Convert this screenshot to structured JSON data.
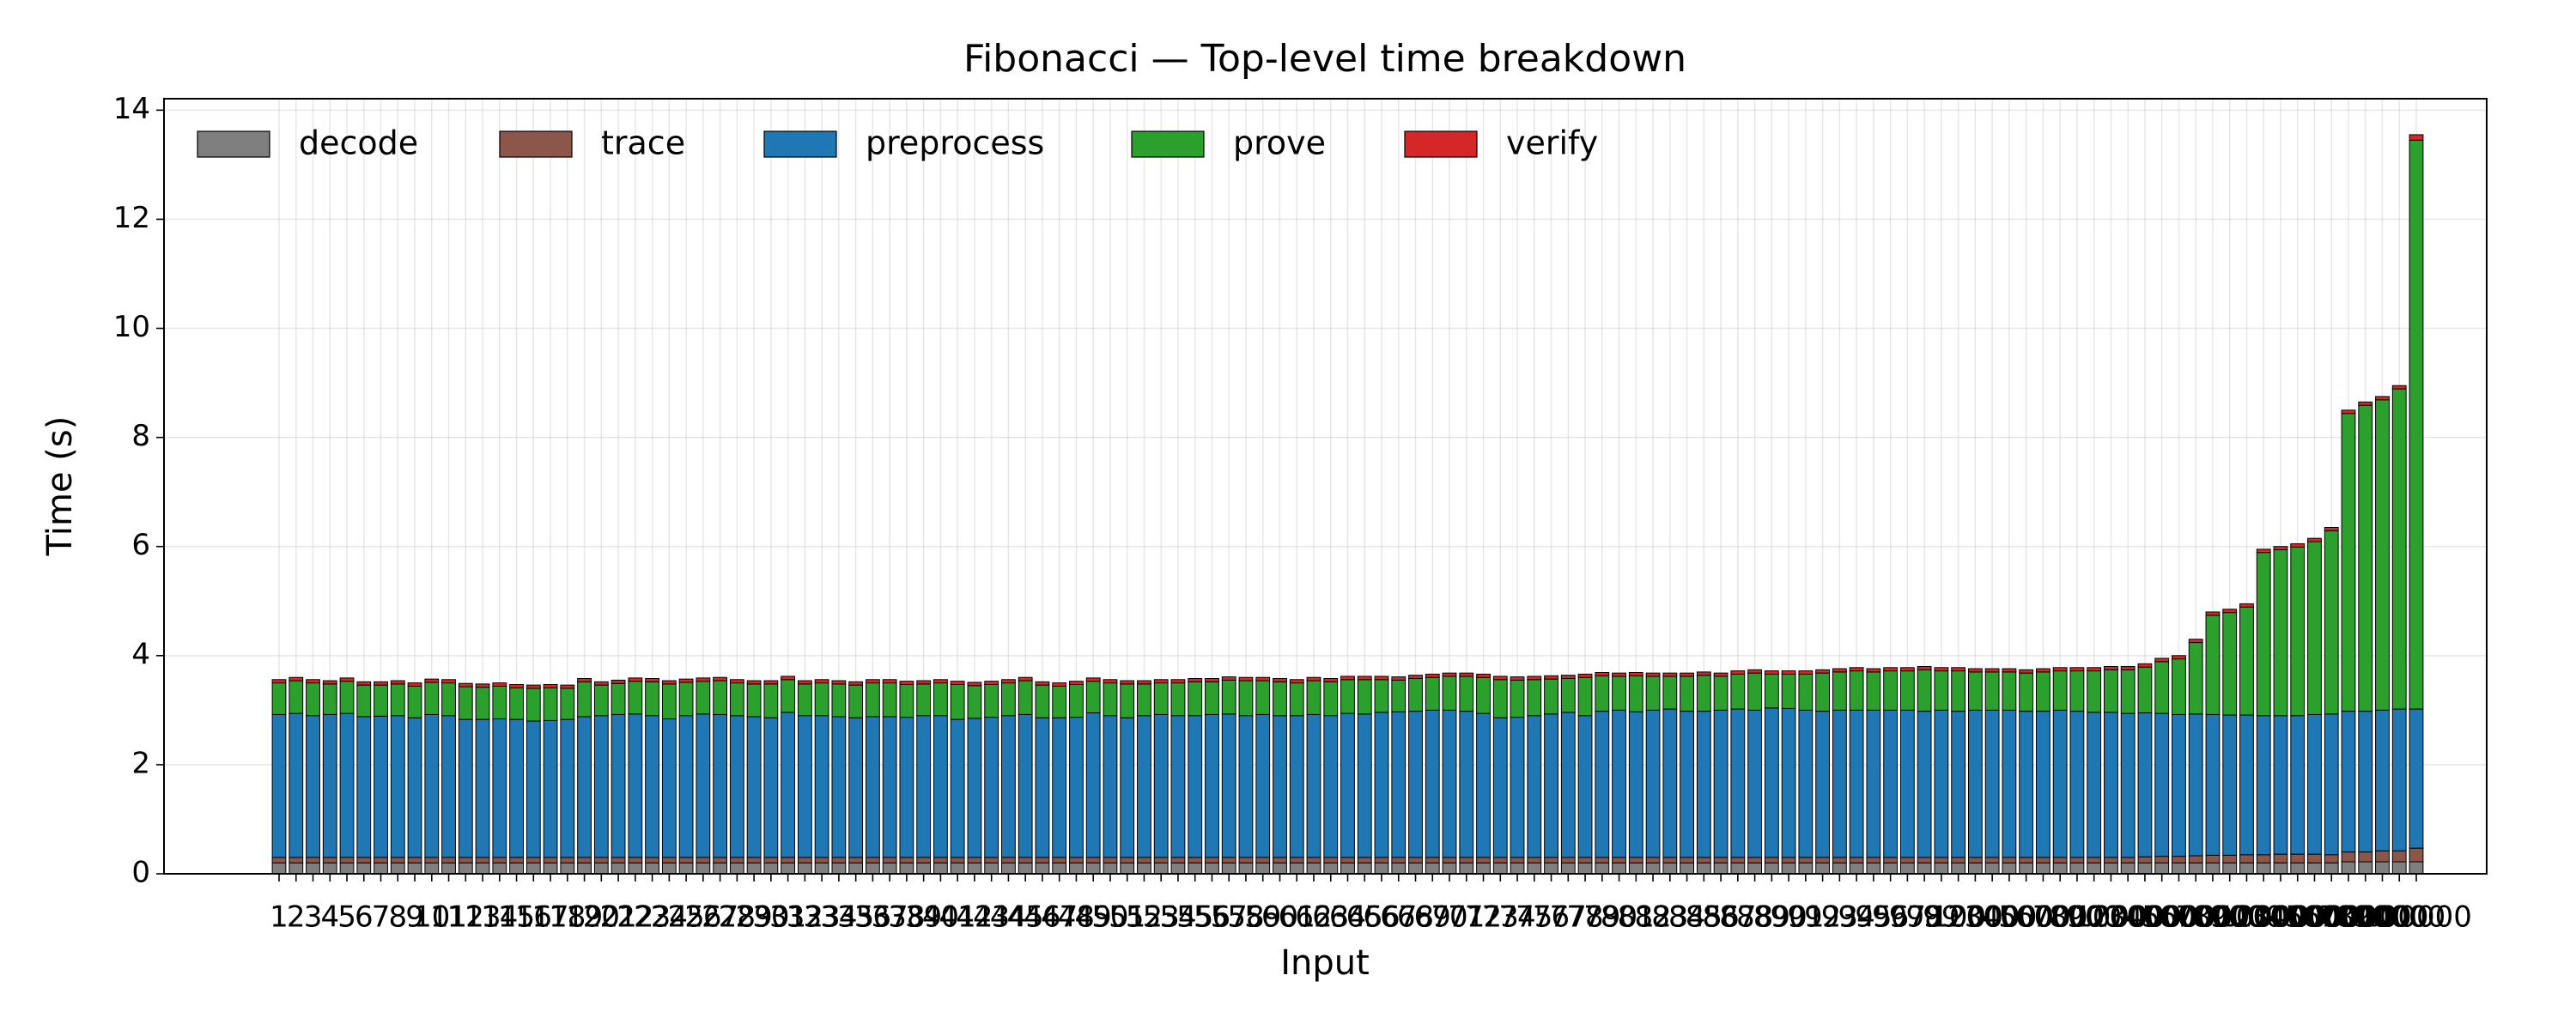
{
  "chart_data": {
    "type": "stacked_bar",
    "title": "Fibonacci — Top-level time breakdown",
    "x_label": "Input",
    "y_label": "Time (s)",
    "ylim": [
      0,
      14.21
    ],
    "yticks": [
      0,
      2,
      4,
      6,
      8,
      10,
      12,
      14
    ],
    "grid": true,
    "legend_loc": "upper left",
    "categories": [
      "1",
      "2",
      "3",
      "4",
      "5",
      "6",
      "7",
      "8",
      "9",
      "10",
      "11",
      "12",
      "13",
      "14",
      "15",
      "16",
      "17",
      "18",
      "19",
      "20",
      "21",
      "22",
      "23",
      "24",
      "25",
      "26",
      "27",
      "28",
      "29",
      "30",
      "31",
      "32",
      "33",
      "34",
      "35",
      "36",
      "37",
      "38",
      "39",
      "40",
      "41",
      "42",
      "43",
      "44",
      "45",
      "46",
      "47",
      "48",
      "49",
      "50",
      "51",
      "52",
      "53",
      "54",
      "55",
      "56",
      "57",
      "58",
      "59",
      "60",
      "61",
      "62",
      "63",
      "64",
      "65",
      "66",
      "67",
      "68",
      "69",
      "70",
      "71",
      "72",
      "73",
      "74",
      "75",
      "76",
      "77",
      "78",
      "79",
      "80",
      "81",
      "82",
      "83",
      "84",
      "85",
      "86",
      "87",
      "88",
      "89",
      "90",
      "91",
      "92",
      "93",
      "94",
      "95",
      "96",
      "97",
      "98",
      "99",
      "100",
      "200",
      "300",
      "400",
      "500",
      "600",
      "700",
      "800",
      "900",
      "1000",
      "2000",
      "3000",
      "4000",
      "5000",
      "6000",
      "7000",
      "8000",
      "9000",
      "10000",
      "20000",
      "30000",
      "40000",
      "50000",
      "60000",
      "70000",
      "80000",
      "90000",
      "100000"
    ],
    "series": [
      {
        "name": "decode",
        "color": "#7f7f7f",
        "values": [
          0.2,
          0.2,
          0.2,
          0.2,
          0.2,
          0.2,
          0.2,
          0.2,
          0.2,
          0.2,
          0.2,
          0.2,
          0.2,
          0.2,
          0.2,
          0.2,
          0.2,
          0.2,
          0.2,
          0.2,
          0.2,
          0.2,
          0.2,
          0.2,
          0.2,
          0.2,
          0.2,
          0.2,
          0.2,
          0.2,
          0.2,
          0.2,
          0.2,
          0.2,
          0.2,
          0.2,
          0.2,
          0.2,
          0.2,
          0.2,
          0.2,
          0.2,
          0.2,
          0.2,
          0.2,
          0.2,
          0.2,
          0.2,
          0.2,
          0.2,
          0.2,
          0.2,
          0.2,
          0.2,
          0.2,
          0.2,
          0.2,
          0.2,
          0.2,
          0.2,
          0.2,
          0.2,
          0.2,
          0.2,
          0.2,
          0.2,
          0.2,
          0.2,
          0.2,
          0.2,
          0.2,
          0.2,
          0.2,
          0.2,
          0.2,
          0.2,
          0.2,
          0.2,
          0.2,
          0.2,
          0.2,
          0.2,
          0.2,
          0.2,
          0.2,
          0.2,
          0.2,
          0.2,
          0.2,
          0.2,
          0.2,
          0.2,
          0.2,
          0.2,
          0.2,
          0.2,
          0.2,
          0.2,
          0.2,
          0.2,
          0.2,
          0.2,
          0.2,
          0.2,
          0.2,
          0.2,
          0.2,
          0.2,
          0.2,
          0.2,
          0.2,
          0.2,
          0.2,
          0.2,
          0.2,
          0.2,
          0.2,
          0.2,
          0.2,
          0.2,
          0.2,
          0.2,
          0.22,
          0.22,
          0.22,
          0.22,
          0.22
        ]
      },
      {
        "name": "trace",
        "color": "#8c564b",
        "values": [
          0.1,
          0.1,
          0.1,
          0.1,
          0.1,
          0.1,
          0.1,
          0.1,
          0.1,
          0.1,
          0.1,
          0.1,
          0.1,
          0.1,
          0.1,
          0.1,
          0.1,
          0.1,
          0.1,
          0.1,
          0.1,
          0.1,
          0.1,
          0.1,
          0.1,
          0.1,
          0.1,
          0.1,
          0.1,
          0.1,
          0.1,
          0.1,
          0.1,
          0.1,
          0.1,
          0.1,
          0.1,
          0.1,
          0.1,
          0.1,
          0.1,
          0.1,
          0.1,
          0.1,
          0.1,
          0.1,
          0.1,
          0.1,
          0.1,
          0.1,
          0.1,
          0.1,
          0.1,
          0.1,
          0.1,
          0.1,
          0.1,
          0.1,
          0.1,
          0.1,
          0.1,
          0.1,
          0.1,
          0.1,
          0.1,
          0.1,
          0.1,
          0.1,
          0.1,
          0.1,
          0.1,
          0.1,
          0.1,
          0.1,
          0.1,
          0.1,
          0.1,
          0.1,
          0.1,
          0.1,
          0.1,
          0.1,
          0.1,
          0.1,
          0.1,
          0.1,
          0.1,
          0.1,
          0.1,
          0.1,
          0.1,
          0.1,
          0.1,
          0.1,
          0.1,
          0.1,
          0.1,
          0.1,
          0.1,
          0.1,
          0.1,
          0.1,
          0.1,
          0.1,
          0.1,
          0.1,
          0.1,
          0.1,
          0.1,
          0.1,
          0.11,
          0.12,
          0.12,
          0.13,
          0.14,
          0.14,
          0.15,
          0.15,
          0.16,
          0.16,
          0.16,
          0.15,
          0.18,
          0.18,
          0.2,
          0.2,
          0.25
        ]
      },
      {
        "name": "preprocess",
        "color": "#1f77b4",
        "values": [
          2.62,
          2.64,
          2.6,
          2.62,
          2.64,
          2.58,
          2.59,
          2.6,
          2.56,
          2.62,
          2.6,
          2.53,
          2.53,
          2.54,
          2.53,
          2.5,
          2.51,
          2.53,
          2.58,
          2.6,
          2.62,
          2.63,
          2.6,
          2.54,
          2.6,
          2.63,
          2.62,
          2.6,
          2.58,
          2.56,
          2.66,
          2.6,
          2.6,
          2.58,
          2.56,
          2.58,
          2.58,
          2.57,
          2.6,
          2.6,
          2.53,
          2.55,
          2.57,
          2.6,
          2.62,
          2.56,
          2.56,
          2.57,
          2.65,
          2.6,
          2.56,
          2.6,
          2.62,
          2.6,
          2.6,
          2.62,
          2.63,
          2.6,
          2.62,
          2.6,
          2.6,
          2.62,
          2.6,
          2.64,
          2.63,
          2.66,
          2.67,
          2.68,
          2.7,
          2.7,
          2.68,
          2.64,
          2.56,
          2.57,
          2.6,
          2.63,
          2.66,
          2.6,
          2.68,
          2.7,
          2.67,
          2.7,
          2.72,
          2.68,
          2.68,
          2.7,
          2.72,
          2.7,
          2.74,
          2.73,
          2.7,
          2.68,
          2.7,
          2.7,
          2.7,
          2.7,
          2.7,
          2.68,
          2.7,
          2.68,
          2.7,
          2.7,
          2.7,
          2.68,
          2.68,
          2.7,
          2.68,
          2.66,
          2.66,
          2.64,
          2.64,
          2.62,
          2.6,
          2.6,
          2.58,
          2.57,
          2.56,
          2.55,
          2.54,
          2.54,
          2.56,
          2.58,
          2.58,
          2.58,
          2.58,
          2.6,
          2.55
        ]
      },
      {
        "name": "prove",
        "color": "#2ca02c",
        "values": [
          0.58,
          0.6,
          0.6,
          0.56,
          0.59,
          0.58,
          0.57,
          0.58,
          0.58,
          0.59,
          0.6,
          0.6,
          0.59,
          0.6,
          0.58,
          0.6,
          0.6,
          0.57,
          0.64,
          0.56,
          0.57,
          0.6,
          0.62,
          0.64,
          0.61,
          0.6,
          0.62,
          0.6,
          0.6,
          0.62,
          0.6,
          0.58,
          0.6,
          0.6,
          0.6,
          0.62,
          0.62,
          0.6,
          0.58,
          0.6,
          0.64,
          0.6,
          0.6,
          0.6,
          0.62,
          0.6,
          0.58,
          0.6,
          0.58,
          0.6,
          0.62,
          0.58,
          0.58,
          0.6,
          0.62,
          0.6,
          0.62,
          0.64,
          0.62,
          0.62,
          0.6,
          0.62,
          0.62,
          0.62,
          0.63,
          0.6,
          0.58,
          0.6,
          0.6,
          0.62,
          0.64,
          0.66,
          0.7,
          0.68,
          0.66,
          0.64,
          0.62,
          0.7,
          0.65,
          0.62,
          0.66,
          0.62,
          0.6,
          0.64,
          0.66,
          0.62,
          0.64,
          0.68,
          0.62,
          0.63,
          0.66,
          0.7,
          0.7,
          0.72,
          0.7,
          0.72,
          0.72,
          0.76,
          0.72,
          0.74,
          0.7,
          0.7,
          0.7,
          0.7,
          0.72,
          0.72,
          0.74,
          0.76,
          0.78,
          0.8,
          0.84,
          0.95,
          1.02,
          1.31,
          1.82,
          1.88,
          1.98,
          2.99,
          3.04,
          3.09,
          3.17,
          3.36,
          5.46,
          5.61,
          5.69,
          5.87,
          10.43
        ]
      },
      {
        "name": "verify",
        "color": "#d62728",
        "values": [
          0.06,
          0.06,
          0.06,
          0.06,
          0.06,
          0.06,
          0.06,
          0.06,
          0.06,
          0.06,
          0.06,
          0.06,
          0.06,
          0.06,
          0.06,
          0.06,
          0.06,
          0.06,
          0.06,
          0.06,
          0.06,
          0.06,
          0.06,
          0.06,
          0.06,
          0.06,
          0.06,
          0.06,
          0.06,
          0.06,
          0.06,
          0.06,
          0.06,
          0.06,
          0.06,
          0.06,
          0.06,
          0.06,
          0.06,
          0.06,
          0.06,
          0.06,
          0.06,
          0.06,
          0.06,
          0.06,
          0.06,
          0.06,
          0.06,
          0.06,
          0.06,
          0.06,
          0.06,
          0.06,
          0.06,
          0.06,
          0.06,
          0.06,
          0.06,
          0.06,
          0.06,
          0.06,
          0.06,
          0.06,
          0.06,
          0.06,
          0.06,
          0.06,
          0.06,
          0.06,
          0.06,
          0.06,
          0.06,
          0.06,
          0.06,
          0.06,
          0.06,
          0.06,
          0.06,
          0.06,
          0.06,
          0.06,
          0.06,
          0.06,
          0.06,
          0.06,
          0.06,
          0.06,
          0.06,
          0.06,
          0.06,
          0.06,
          0.06,
          0.06,
          0.06,
          0.06,
          0.06,
          0.06,
          0.06,
          0.06,
          0.06,
          0.06,
          0.06,
          0.06,
          0.06,
          0.06,
          0.06,
          0.06,
          0.06,
          0.06,
          0.06,
          0.06,
          0.06,
          0.06,
          0.06,
          0.06,
          0.06,
          0.06,
          0.06,
          0.06,
          0.06,
          0.06,
          0.06,
          0.06,
          0.06,
          0.06,
          0.1
        ]
      }
    ]
  }
}
